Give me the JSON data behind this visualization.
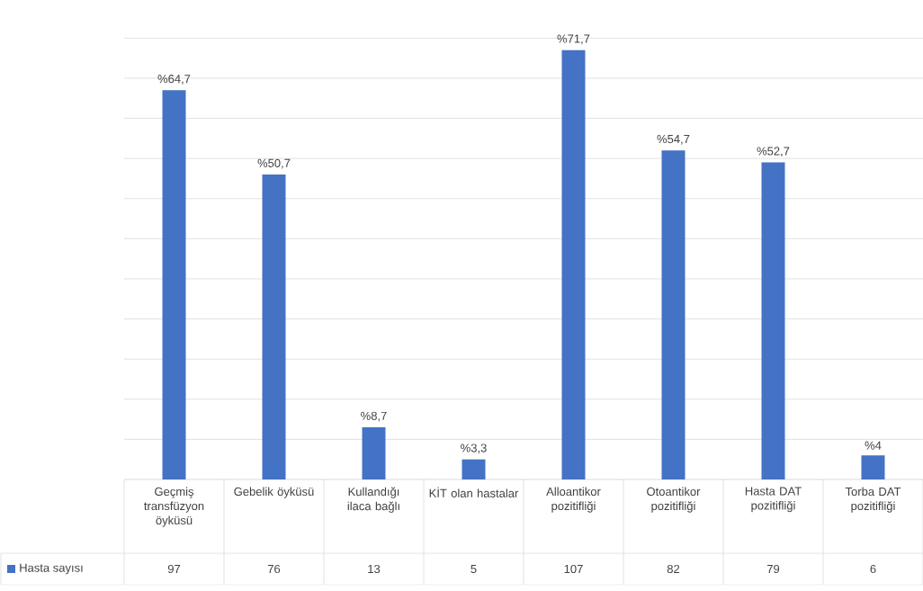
{
  "chart_data": {
    "type": "bar",
    "categories": [
      "Geçmiş transfüzyon öyküsü",
      "Gebelik öyküsü",
      "Kullandığı ilaca bağlı",
      "KİT olan hastalar",
      "Alloantikor pozitifliği",
      "Otoantikor pozitifliği",
      "Hasta DAT pozitifliği",
      "Torba DAT pozitifliği"
    ],
    "series": [
      {
        "name": "Hasta sayısı",
        "color": "#4472c4",
        "values": [
          97,
          76,
          13,
          5,
          107,
          82,
          79,
          6
        ],
        "value_labels": [
          "97",
          "76",
          "13",
          "5",
          "107",
          "82",
          "79",
          "6"
        ]
      }
    ],
    "annotations": [
      {
        "text": "%64,7",
        "x": "Geçmiş transfüzyon öyküsü",
        "y": 97
      },
      {
        "text": "%50,7",
        "x": "Gebelik öyküsü",
        "y": 76
      },
      {
        "text": "%8,7",
        "x": "Kullandığı ilaca bağlı",
        "y": 13
      },
      {
        "text": "%3,3",
        "x": "KİT olan hastalar",
        "y": 5
      },
      {
        "text": "%71,7",
        "x": "Alloantikor pozitifliği",
        "y": 107
      },
      {
        "text": "%54,7",
        "x": "Otoantikor pozitifliği",
        "y": 82
      },
      {
        "text": "%52,7",
        "x": "Hasta DAT pozitifliği",
        "y": 79
      },
      {
        "text": "%4",
        "x": "Torba DAT pozitifliği",
        "y": 6
      }
    ],
    "tick_labels": "x",
    "grid": "y",
    "legend": "bottom left"
  }
}
